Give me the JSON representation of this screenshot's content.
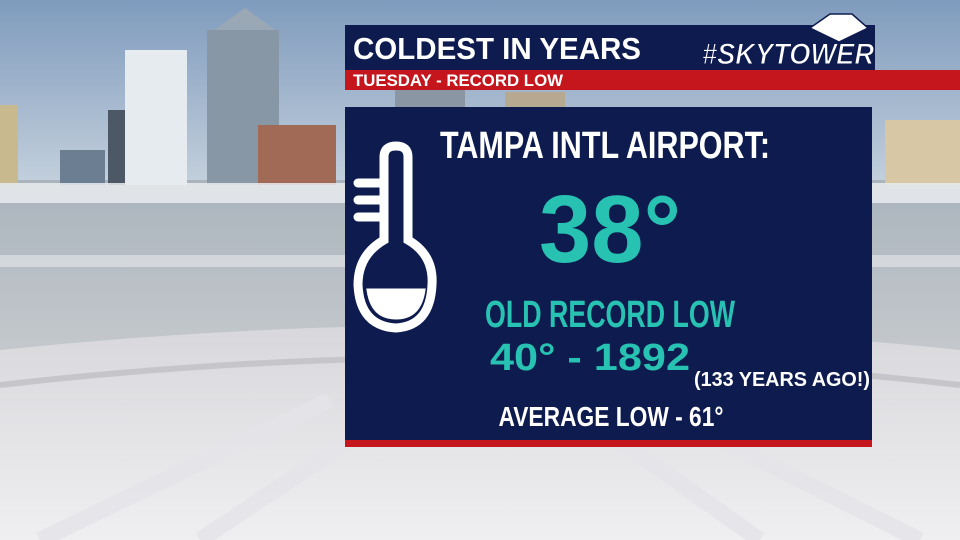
{
  "header": {
    "title": "COLDEST IN YEARS",
    "subtitle": "TUESDAY - RECORD LOW",
    "logo": "#SKYTOWER"
  },
  "panel": {
    "location": "TAMPA INTL AIRPORT:",
    "temperature": "38°",
    "record_heading": "OLD RECORD LOW",
    "record": "40° - 1892",
    "record_note": "(133 YEARS AGO!)",
    "average": "AVERAGE LOW - 61°"
  }
}
